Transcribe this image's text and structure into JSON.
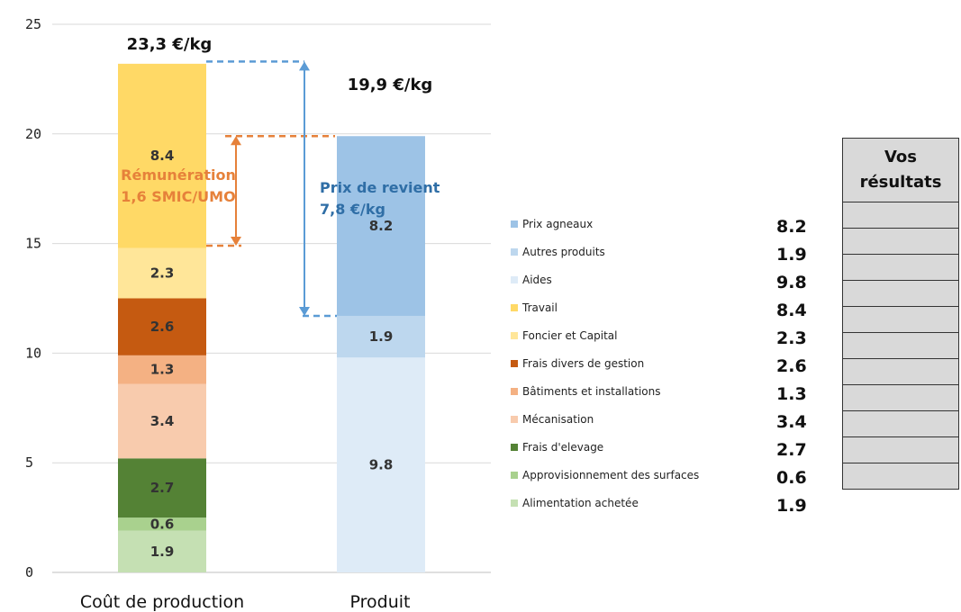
{
  "chart_data": {
    "type": "bar",
    "stacked": true,
    "categories": [
      "Coût de production",
      "Produit"
    ],
    "ylim": [
      0,
      25
    ],
    "yticks": [
      0,
      5,
      10,
      15,
      20,
      25
    ],
    "grid": true,
    "series": [
      {
        "name": "Alimentation achetée",
        "color": "#C5E0B3",
        "values": [
          1.9,
          null
        ]
      },
      {
        "name": "Approvisionnement des surfaces",
        "color": "#A9D18E",
        "values": [
          0.6,
          null
        ]
      },
      {
        "name": "Frais d'elevage",
        "color": "#548235",
        "values": [
          2.7,
          null
        ]
      },
      {
        "name": "Mécanisation",
        "color": "#F8CBAD",
        "values": [
          3.4,
          null
        ]
      },
      {
        "name": "Bâtiments et installations",
        "color": "#F4B183",
        "values": [
          1.3,
          null
        ]
      },
      {
        "name": "Frais divers de gestion",
        "color": "#C55A11",
        "values": [
          2.6,
          null
        ]
      },
      {
        "name": "Foncier et Capital",
        "color": "#FFE699",
        "values": [
          2.3,
          null
        ]
      },
      {
        "name": "Travail",
        "color": "#FFD966",
        "values": [
          8.4,
          null
        ]
      },
      {
        "name": "Aides",
        "color": "#DEEBF7",
        "values": [
          null,
          9.8
        ]
      },
      {
        "name": "Autres produits",
        "color": "#BDD7EE",
        "values": [
          null,
          1.9
        ]
      },
      {
        "name": "Prix agneaux",
        "color": "#9DC3E6",
        "values": [
          null,
          8.2
        ]
      }
    ],
    "data_labels": [
      [
        "1.9",
        "0.6",
        "2.7",
        "3.4",
        "1.3",
        "2.6",
        "2.3",
        "8.4"
      ],
      [
        "9.8",
        "1.9",
        "8.2"
      ]
    ],
    "totals": [
      "23,3 €/kg",
      "19,9 €/kg"
    ],
    "annotations": {
      "remuneration": [
        "Rémunération",
        "1,6 SMIC/UMO"
      ],
      "prix_revient": [
        "Prix de revient",
        "7,8 €/kg"
      ]
    },
    "legend": {
      "position": "right",
      "entries": [
        {
          "label": "Prix agneaux",
          "value": "8.2",
          "color": "#9DC3E6"
        },
        {
          "label": "Autres produits",
          "value": "1.9",
          "color": "#BDD7EE"
        },
        {
          "label": "Aides",
          "value": "9.8",
          "color": "#DEEBF7"
        },
        {
          "label": "Travail",
          "value": "8.4",
          "color": "#FFD966"
        },
        {
          "label": "Foncier et Capital",
          "value": "2.3",
          "color": "#FFE699"
        },
        {
          "label": "Frais divers de gestion",
          "value": "2.6",
          "color": "#C55A11"
        },
        {
          "label": "Bâtiments et installations",
          "value": "1.3",
          "color": "#F4B183"
        },
        {
          "label": "Mécanisation",
          "value": "3.4",
          "color": "#F8CBAD"
        },
        {
          "label": "Frais d'elevage",
          "value": "2.7",
          "color": "#548235"
        },
        {
          "label": "Approvisionnement des surfaces",
          "value": "0.6",
          "color": "#A9D18E"
        },
        {
          "label": "Alimentation achetée",
          "value": "1.9",
          "color": "#C5E0B3"
        }
      ]
    }
  },
  "results_table": {
    "header": [
      "Vos",
      "résultats"
    ],
    "rows": 11
  }
}
